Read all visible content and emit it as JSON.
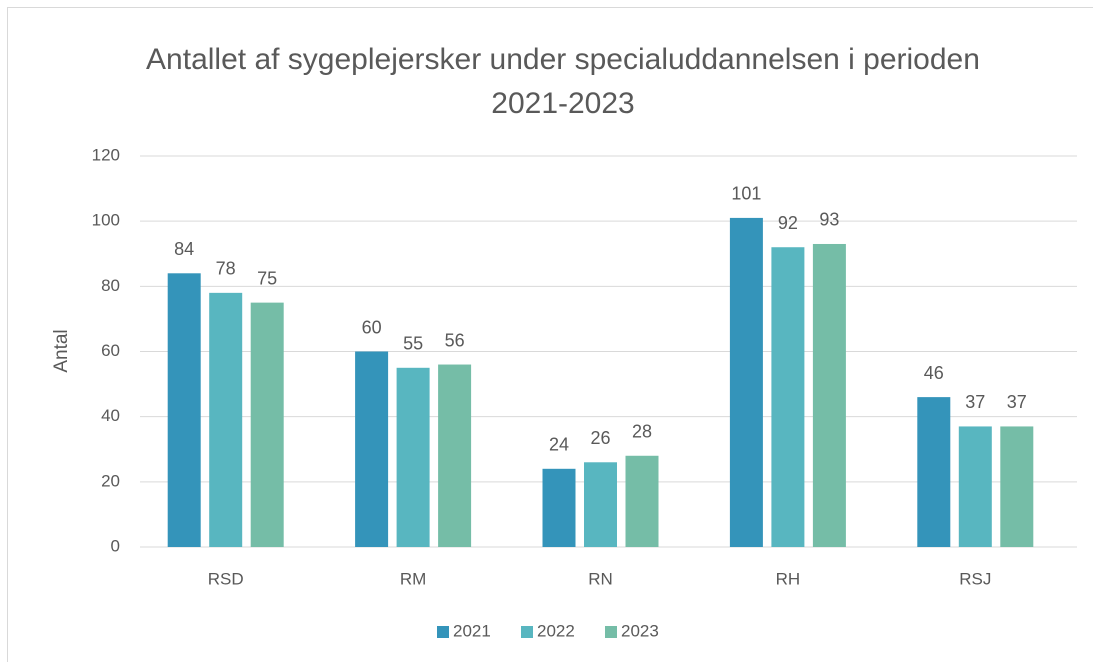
{
  "chart_data": {
    "type": "bar",
    "title": "Antallet af sygeplejersker under specialuddannelsen i perioden 2021-2023",
    "y_label": "Antal",
    "categories": [
      "RSD",
      "RM",
      "RN",
      "RH",
      "RSJ"
    ],
    "series": [
      {
        "name": "2021",
        "color": "#3494ba",
        "values": [
          84,
          60,
          24,
          101,
          46
        ]
      },
      {
        "name": "2022",
        "color": "#58b6c0",
        "values": [
          78,
          55,
          26,
          92,
          37
        ]
      },
      {
        "name": "2023",
        "color": "#75bda7",
        "values": [
          75,
          56,
          28,
          93,
          37
        ]
      }
    ],
    "ylim": [
      0,
      120
    ],
    "yticks": [
      0,
      20,
      40,
      60,
      80,
      100,
      120
    ],
    "grid": true,
    "legend": "bottom"
  }
}
